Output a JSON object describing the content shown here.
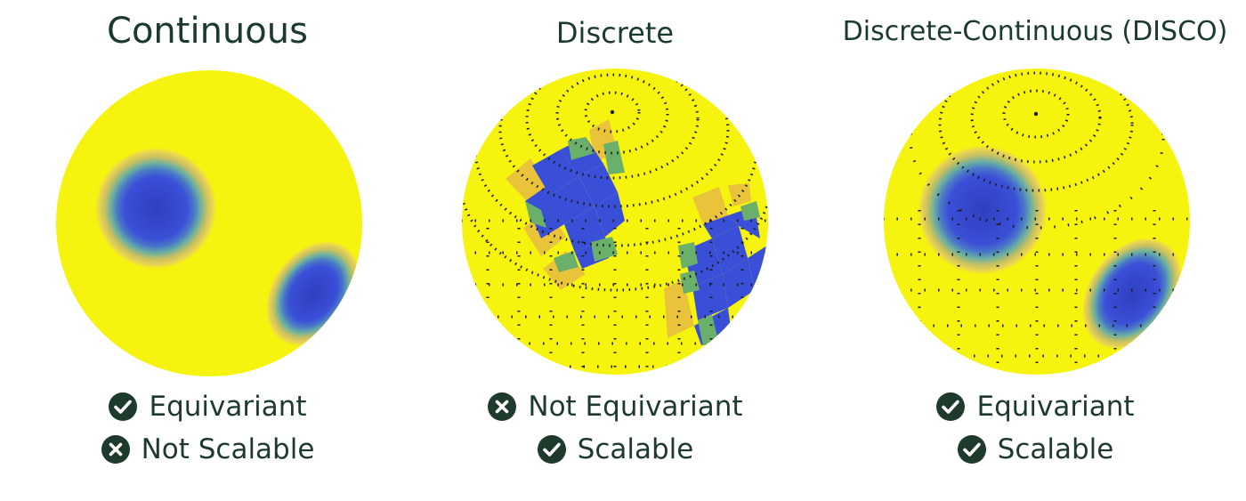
{
  "colors": {
    "background": "#ffffff",
    "sphere_yellow": "#f6f40e",
    "field_blue": "#3a4fd8",
    "field_green": "#6bb06a",
    "field_orange": "#e9c43a",
    "grid_dots": "#1a1a1a",
    "text_dark": "#1b3a2c"
  },
  "panels": [
    {
      "title": "Continuous",
      "properties": [
        {
          "icon": "check-circle-icon",
          "label": "Equivariant"
        },
        {
          "icon": "cross-circle-icon",
          "label": "Not Scalable"
        }
      ]
    },
    {
      "title": "Discrete",
      "properties": [
        {
          "icon": "cross-circle-icon",
          "label": "Not Equivariant"
        },
        {
          "icon": "check-circle-icon",
          "label": "Scalable"
        }
      ]
    },
    {
      "title": "Discrete-Continuous (DISCO)",
      "properties": [
        {
          "icon": "check-circle-icon",
          "label": "Equivariant"
        },
        {
          "icon": "check-circle-icon",
          "label": "Scalable"
        }
      ]
    }
  ]
}
